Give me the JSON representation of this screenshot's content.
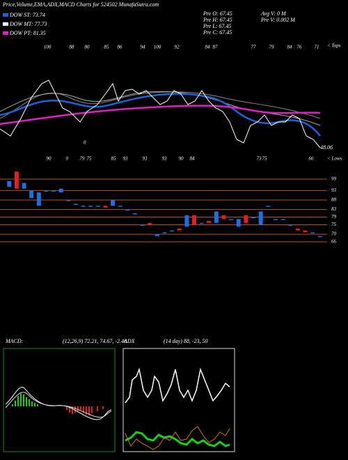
{
  "header": {
    "title": "Price,Volume,EMA,ADX,MACD Charts for 524502 MunafaSutra.com"
  },
  "legend": [
    {
      "label": "DOW ST: 73.74",
      "color": "#1e63d6"
    },
    {
      "label": "DOW MT: 77.73",
      "color": "#ffffff"
    },
    {
      "label": "DOW PT: 81.35",
      "color": "#e020c0"
    }
  ],
  "info": [
    "Pre  O: 67.45",
    "Pre  H: 67.45",
    "Pre  L: 67.45",
    "Pre  C: 67.45",
    "Avg V: 0  M",
    "Pre  V: 0.002  M"
  ],
  "top_panel": {
    "top_labels": [
      "100",
      "88",
      "80",
      "85",
      "86",
      "94",
      "100",
      "92",
      "84",
      "87",
      "77",
      "79",
      "84",
      "76",
      "71"
    ],
    "bottom_labels": [
      "90",
      "9",
      "79",
      "75",
      "85",
      "93",
      "93",
      "93",
      "90",
      "84",
      "73",
      "75",
      "66"
    ],
    "zero_label": "0",
    "tops_label": "< Tops",
    "lows_label": "< Lows",
    "last_value": "48.06"
  },
  "chart_data": {
    "type": "candlestick",
    "open": [
      98,
      94,
      97,
      93,
      92,
      93,
      93,
      94,
      88,
      86,
      85,
      85,
      85,
      84,
      88,
      85,
      83,
      81,
      75,
      75,
      70,
      71,
      72,
      72,
      80,
      75,
      76,
      76,
      82,
      78,
      78,
      78,
      76,
      79,
      82,
      85,
      78,
      78,
      75,
      72,
      71,
      71,
      69
    ],
    "close": [
      95,
      103,
      94,
      89,
      85,
      93,
      93,
      92,
      88,
      86,
      85,
      85,
      85,
      85,
      85,
      85,
      83,
      81,
      75,
      76,
      69,
      71,
      72,
      73,
      74,
      80,
      76,
      77,
      76,
      80,
      78,
      74,
      80,
      79,
      75,
      85,
      78,
      78,
      75,
      73,
      72,
      71,
      69
    ],
    "up_color": "#e02020",
    "down_color": "#1f6fe0",
    "ylim": [
      64.9,
      103.4
    ],
    "yticks": [
      99,
      93,
      88,
      83,
      79,
      75,
      70,
      66
    ],
    "grid_color": "#b4561f"
  },
  "macd": {
    "label": "MACD:",
    "params": "(12,26,9) 72.21, 74.67, -2.46"
  },
  "adx": {
    "label": "ADX",
    "params": "(14 day) 88, -23, 50"
  }
}
